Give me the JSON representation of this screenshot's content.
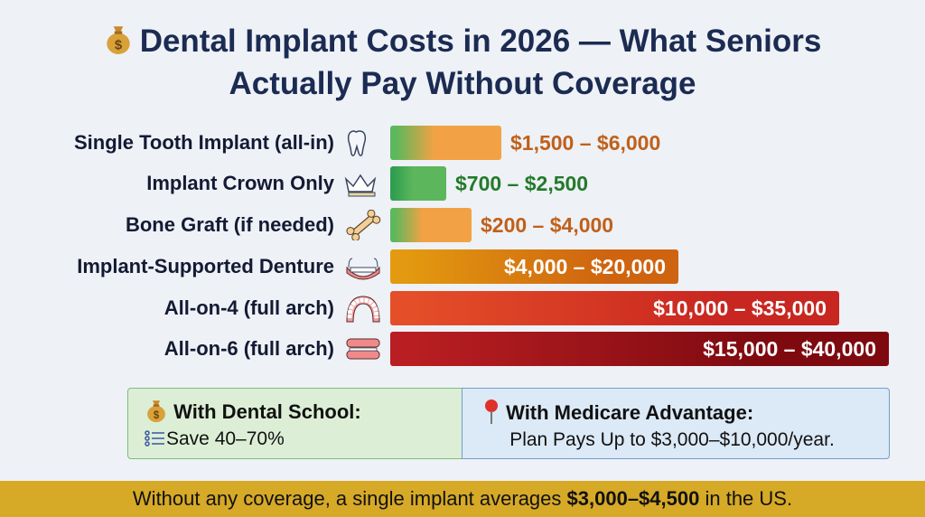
{
  "title": {
    "line1": "Dental Implant Costs in 2026 — What Seniors",
    "line2": "Actually Pay Without Coverage",
    "icon": "money-bag-icon"
  },
  "chart_data": {
    "type": "bar",
    "orientation": "horizontal",
    "title": "Dental Implant Costs in 2026 — What Seniors Actually Pay Without Coverage",
    "categories": [
      "Single Tooth Implant (all-in)",
      "Implant Crown Only",
      "Bone Graft (if needed)",
      "Implant-Supported Denture",
      "All-on-4 (full arch)",
      "All-on-6 (full arch)"
    ],
    "icons": [
      "tooth-icon",
      "crown-icon",
      "bone-icon",
      "denture-icon",
      "arch-icon",
      "full-denture-icon"
    ],
    "ranges": [
      [
        1500,
        6000
      ],
      [
        700,
        2500
      ],
      [
        200,
        4000
      ],
      [
        4000,
        20000
      ],
      [
        10000,
        35000
      ],
      [
        15000,
        40000
      ]
    ],
    "labels": [
      "$1,500 – $6,000",
      "$700 – $2,500",
      "$200 – $4,000",
      "$4,000 – $20,000",
      "$10,000 – $35,000",
      "$15,000 – $40,000"
    ],
    "colors": [
      [
        "#5cb85c",
        "#f2a244"
      ],
      [
        "#2e9e50",
        "#5bb65c"
      ],
      [
        "#5cb85c",
        "#f2a244"
      ],
      [
        "#e39a10",
        "#cf6410"
      ],
      [
        "#e44e28",
        "#c82620"
      ],
      [
        "#b81e22",
        "#7e0a10"
      ]
    ],
    "label_colors": [
      "#c0601a",
      "#237a2a",
      "#c0601a",
      "#ffffff",
      "#ffffff",
      "#ffffff"
    ],
    "grid": false,
    "legend": "none"
  },
  "callouts": {
    "dental_school": {
      "title": "With Dental School:",
      "text": "Save 40–70%",
      "bg": "#dcefd6",
      "border": "#7cbf78"
    },
    "medicare": {
      "title": "With Medicare Advantage:",
      "text": "Plan Pays Up to $3,000–$10,000/year.",
      "bg": "#dce9f6",
      "border": "#6f9fd0"
    }
  },
  "footer": {
    "prefix": "Without any coverage, a single implant averages ",
    "bold": "$3,000–$4,500",
    "suffix": " in the US.",
    "bg": "#d6a927"
  }
}
